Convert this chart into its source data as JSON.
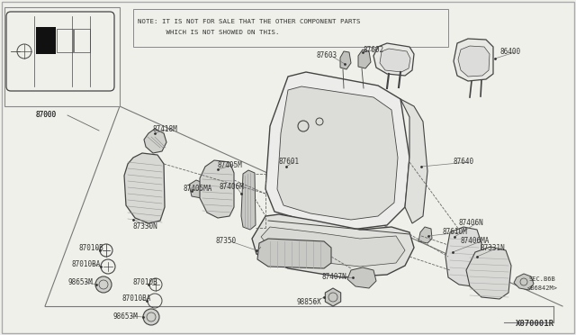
{
  "bg_color": "#f0f0eb",
  "line_color": "#444444",
  "text_color": "#333333",
  "title_note_line1": "NOTE: IT IS NOT FOR SALE THAT THE OTHER COMPONENT PARTS",
  "title_note_line2": "       WHICH IS NOT SHOWED ON THIS.",
  "diagram_id": "X870001R",
  "fig_w": 640,
  "fig_h": 372
}
